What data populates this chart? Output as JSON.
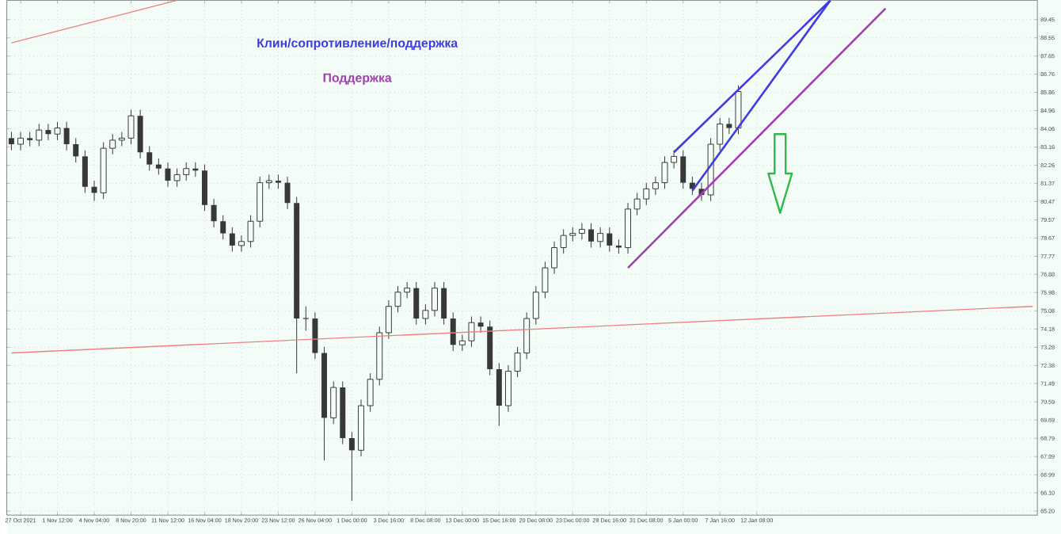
{
  "chart_data": {
    "type": "candlestick",
    "color": "#383838",
    "grid": true,
    "categories": [
      null,
      "27 Oct 2021",
      null,
      null,
      null,
      "1 Nov 12:00",
      null,
      null,
      null,
      "4 Nov 04:00",
      null,
      null,
      null,
      "8 Nov 20:00",
      null,
      null,
      null,
      "11 Nov 12:00",
      null,
      null,
      null,
      "16 Nov 04:00",
      null,
      null,
      null,
      "18 Nov 20:00",
      null,
      null,
      null,
      "23 Nov 12:00",
      null,
      null,
      null,
      "26 Nov 04:00",
      null,
      null,
      null,
      "1 Dec 00:00",
      null,
      null,
      null,
      "3 Dec 16:00",
      null,
      null,
      null,
      "8 Dec 08:00",
      null,
      null,
      null,
      "13 Dec 00:00",
      null,
      null,
      null,
      "15 Dec 16:00",
      null,
      null,
      null,
      "20 Dec 08:00",
      null,
      null,
      null,
      "23 Dec 00:00",
      null,
      null,
      null,
      "28 Dec 16:00",
      null,
      null,
      null,
      "31 Dec 08:00",
      null,
      null,
      null,
      "5 Jan 00:00",
      null,
      null,
      null,
      "7 Jan 16:00",
      null,
      null,
      null,
      "12 Jan 08:00",
      null,
      null,
      null,
      null,
      null,
      null,
      null,
      null,
      null,
      null,
      null,
      null,
      null,
      null,
      null,
      null,
      null,
      null,
      null,
      null,
      null,
      null,
      null,
      null,
      null,
      null,
      null,
      null,
      null,
      null
    ],
    "ohlc": [
      [
        83.6,
        83.9,
        83.0,
        83.3
      ],
      [
        83.3,
        83.9,
        83.0,
        83.6
      ],
      [
        83.6,
        83.9,
        83.2,
        83.5
      ],
      [
        83.5,
        84.3,
        83.2,
        84.0
      ],
      [
        84.0,
        84.3,
        83.5,
        83.8
      ],
      [
        83.8,
        84.4,
        83.5,
        84.1
      ],
      [
        84.1,
        84.4,
        83.0,
        83.3
      ],
      [
        83.3,
        83.6,
        82.4,
        82.7
      ],
      [
        82.7,
        83.0,
        80.9,
        81.2
      ],
      [
        81.2,
        81.5,
        80.5,
        80.9
      ],
      [
        80.9,
        83.4,
        80.6,
        83.1
      ],
      [
        83.1,
        83.8,
        82.8,
        83.5
      ],
      [
        83.5,
        83.9,
        83.2,
        83.6
      ],
      [
        83.6,
        85.0,
        83.3,
        84.7
      ],
      [
        84.7,
        85.0,
        82.6,
        82.9
      ],
      [
        82.9,
        83.2,
        82.0,
        82.3
      ],
      [
        82.3,
        82.6,
        81.8,
        82.1
      ],
      [
        82.1,
        82.4,
        81.2,
        81.5
      ],
      [
        81.5,
        82.1,
        81.2,
        81.8
      ],
      [
        81.8,
        82.4,
        81.5,
        82.1
      ],
      [
        82.1,
        82.4,
        81.7,
        82.0
      ],
      [
        82.0,
        82.3,
        80.0,
        80.3
      ],
      [
        80.3,
        80.6,
        79.2,
        79.5
      ],
      [
        79.5,
        79.8,
        78.6,
        78.9
      ],
      [
        78.9,
        79.2,
        78.0,
        78.3
      ],
      [
        78.3,
        78.8,
        78.0,
        78.5
      ],
      [
        78.5,
        79.8,
        78.2,
        79.5
      ],
      [
        79.5,
        81.7,
        79.2,
        81.4
      ],
      [
        81.4,
        81.8,
        81.1,
        81.5
      ],
      [
        81.5,
        81.8,
        81.1,
        81.4
      ],
      [
        81.4,
        81.7,
        80.1,
        80.4
      ],
      [
        80.4,
        80.7,
        72.0,
        74.7
      ],
      [
        74.7,
        75.3,
        74.1,
        74.7
      ],
      [
        74.7,
        75.0,
        72.7,
        73.0
      ],
      [
        73.0,
        73.3,
        67.7,
        69.8
      ],
      [
        69.8,
        71.6,
        69.5,
        71.3
      ],
      [
        71.3,
        71.6,
        68.5,
        68.8
      ],
      [
        68.8,
        69.1,
        65.7,
        68.2
      ],
      [
        68.2,
        70.7,
        67.9,
        70.4
      ],
      [
        70.4,
        72.0,
        70.1,
        71.7
      ],
      [
        71.7,
        74.3,
        71.4,
        74.0
      ],
      [
        74.0,
        75.6,
        73.7,
        75.3
      ],
      [
        75.3,
        76.3,
        75.0,
        76.0
      ],
      [
        76.0,
        76.5,
        75.7,
        76.2
      ],
      [
        76.2,
        76.5,
        74.4,
        74.7
      ],
      [
        74.7,
        75.4,
        74.4,
        75.1
      ],
      [
        75.1,
        76.5,
        74.8,
        76.2
      ],
      [
        76.2,
        76.5,
        74.4,
        74.7
      ],
      [
        74.7,
        75.0,
        73.1,
        73.4
      ],
      [
        73.4,
        73.9,
        73.1,
        73.6
      ],
      [
        73.6,
        74.8,
        73.3,
        74.5
      ],
      [
        74.5,
        74.8,
        74.0,
        74.3
      ],
      [
        74.3,
        74.6,
        71.9,
        72.2
      ],
      [
        72.2,
        72.5,
        69.4,
        70.4
      ],
      [
        70.4,
        72.4,
        70.1,
        72.1
      ],
      [
        72.1,
        73.3,
        71.8,
        73.0
      ],
      [
        73.0,
        75.0,
        72.7,
        74.7
      ],
      [
        74.7,
        76.3,
        74.4,
        76.0
      ],
      [
        76.0,
        77.5,
        75.7,
        77.2
      ],
      [
        77.2,
        78.5,
        76.9,
        78.2
      ],
      [
        78.2,
        79.1,
        77.9,
        78.8
      ],
      [
        78.8,
        79.2,
        78.5,
        78.9
      ],
      [
        78.9,
        79.4,
        78.6,
        79.1
      ],
      [
        79.1,
        79.4,
        78.2,
        78.5
      ],
      [
        78.5,
        79.2,
        78.2,
        78.9
      ],
      [
        78.9,
        79.2,
        78.0,
        78.3
      ],
      [
        78.3,
        78.6,
        77.9,
        78.2
      ],
      [
        78.2,
        80.4,
        77.9,
        80.1
      ],
      [
        80.1,
        80.9,
        79.8,
        80.6
      ],
      [
        80.6,
        81.4,
        80.3,
        81.1
      ],
      [
        81.1,
        81.7,
        80.8,
        81.4
      ],
      [
        81.4,
        82.7,
        81.1,
        82.4
      ],
      [
        82.4,
        83.0,
        82.1,
        82.7
      ],
      [
        82.7,
        83.0,
        81.1,
        81.4
      ],
      [
        81.4,
        81.7,
        80.8,
        81.1
      ],
      [
        81.1,
        81.4,
        80.5,
        80.8
      ],
      [
        80.8,
        83.6,
        80.5,
        83.3
      ],
      [
        83.3,
        84.6,
        83.0,
        84.3
      ],
      [
        84.3,
        84.6,
        83.8,
        84.1
      ],
      [
        84.1,
        86.2,
        83.8,
        85.9
      ],
      null,
      null,
      null,
      null,
      null,
      null,
      null,
      null,
      null,
      null,
      null,
      null,
      null,
      null,
      null,
      null,
      null,
      null,
      null,
      null,
      null,
      null,
      null,
      null,
      null,
      null,
      null,
      null,
      null,
      null,
      null,
      null
    ],
    "ylim": [
      65.0,
      90.4
    ],
    "yticks": [
      {
        "value": 65.2,
        "label": "65.20"
      },
      {
        "value": 66.1,
        "label": "66.10"
      },
      {
        "value": 66.99,
        "label": "66.99"
      },
      {
        "value": 67.89,
        "label": "67.89"
      },
      {
        "value": 68.79,
        "label": "68.79"
      },
      {
        "value": 69.69,
        "label": "69.69"
      },
      {
        "value": 70.59,
        "label": "70.59"
      },
      {
        "value": 71.49,
        "label": "71.49"
      },
      {
        "value": 72.38,
        "label": "72.38"
      },
      {
        "value": 73.28,
        "label": "73.28"
      },
      {
        "value": 74.18,
        "label": "74.18"
      },
      {
        "value": 75.08,
        "label": "75.08"
      },
      {
        "value": 75.98,
        "label": "75.98"
      },
      {
        "value": 76.88,
        "label": "76.88"
      },
      {
        "value": 77.77,
        "label": "77.77"
      },
      {
        "value": 78.67,
        "label": "78.67"
      },
      {
        "value": 79.57,
        "label": "79.57"
      },
      {
        "value": 80.47,
        "label": "80.47"
      },
      {
        "value": 81.37,
        "label": "81.37"
      },
      {
        "value": 82.26,
        "label": "82.26"
      },
      {
        "value": 83.16,
        "label": "83.16"
      },
      {
        "value": 84.06,
        "label": "84.06"
      },
      {
        "value": 84.96,
        "label": "84.96"
      },
      {
        "value": 85.86,
        "label": "85.86"
      },
      {
        "value": 86.76,
        "label": "86.76"
      },
      {
        "value": 87.65,
        "label": "87.65"
      },
      {
        "value": 88.55,
        "label": "88.55"
      },
      {
        "value": 89.45,
        "label": "89.45"
      }
    ],
    "series": [
      {
        "type": "line",
        "color": "#f08080",
        "values": [
          73.0,
          null,
          null,
          null,
          null,
          null,
          null,
          null,
          null,
          null,
          null,
          null,
          null,
          null,
          null,
          null,
          null,
          null,
          null,
          null,
          null,
          null,
          null,
          null,
          null,
          null,
          null,
          null,
          null,
          null,
          null,
          null,
          null,
          null,
          null,
          null,
          null,
          null,
          null,
          null,
          null,
          null,
          null,
          null,
          null,
          null,
          null,
          null,
          null,
          null,
          null,
          null,
          null,
          null,
          null,
          null,
          null,
          null,
          null,
          null,
          null,
          null,
          null,
          null,
          null,
          null,
          null,
          null,
          null,
          null,
          null,
          null,
          null,
          null,
          null,
          null,
          null,
          null,
          null,
          null,
          null,
          null,
          null,
          null,
          null,
          null,
          null,
          null,
          null,
          null,
          null,
          null,
          null,
          null,
          null,
          null,
          null,
          null,
          null,
          null,
          null,
          null,
          null,
          null,
          null,
          null,
          null,
          null,
          null,
          null,
          null,
          75.3
        ]
      },
      {
        "type": "line",
        "color": "#f08080",
        "values": [
          88.3,
          null,
          null,
          null,
          null,
          null,
          null,
          null,
          null,
          null,
          null,
          null,
          null,
          null,
          null,
          null,
          null,
          null,
          90.4,
          null,
          null,
          null,
          null,
          null,
          null,
          null,
          null,
          null,
          null,
          null,
          null,
          null,
          null,
          null,
          null,
          null,
          null,
          null,
          null,
          null,
          null,
          null,
          null,
          null,
          null,
          null,
          null,
          null,
          null,
          null,
          null,
          null,
          null,
          null,
          null,
          null,
          null,
          null,
          null,
          null,
          null,
          null,
          null,
          null,
          null,
          null,
          null,
          null,
          null,
          null,
          null,
          null,
          null,
          null,
          null,
          null,
          null,
          null,
          null,
          null,
          null,
          null,
          null,
          null,
          null,
          null,
          null,
          null,
          null,
          null,
          null,
          null,
          null,
          null,
          null,
          null,
          null,
          null,
          null,
          null,
          null,
          null,
          null,
          null,
          null,
          null,
          null,
          null,
          null,
          null,
          null,
          null
        ]
      },
      {
        "type": "line",
        "color": "#3c3ce0",
        "name": "Клин/сопротивление/поддержка",
        "values": [
          null,
          null,
          null,
          null,
          null,
          null,
          null,
          null,
          null,
          null,
          null,
          null,
          null,
          null,
          null,
          null,
          null,
          null,
          null,
          null,
          null,
          null,
          null,
          null,
          null,
          null,
          null,
          null,
          null,
          null,
          null,
          null,
          null,
          null,
          null,
          null,
          null,
          null,
          null,
          null,
          null,
          null,
          null,
          null,
          null,
          null,
          null,
          null,
          null,
          null,
          null,
          null,
          null,
          null,
          null,
          null,
          null,
          null,
          null,
          null,
          null,
          null,
          null,
          null,
          null,
          null,
          null,
          null,
          null,
          null,
          null,
          null,
          82.9,
          null,
          null,
          null,
          null,
          null,
          null,
          null,
          null,
          null,
          null,
          null,
          null,
          null,
          null,
          null,
          null,
          90.4,
          null,
          null,
          null,
          null,
          null,
          null,
          null,
          null,
          null,
          null,
          null,
          null,
          null,
          null,
          null,
          null,
          null,
          null,
          null,
          null,
          null,
          null
        ]
      },
      {
        "type": "line",
        "color": "#3c3ce0",
        "values": [
          null,
          null,
          null,
          null,
          null,
          null,
          null,
          null,
          null,
          null,
          null,
          null,
          null,
          null,
          null,
          null,
          null,
          null,
          null,
          null,
          null,
          null,
          null,
          null,
          null,
          null,
          null,
          null,
          null,
          null,
          null,
          null,
          null,
          null,
          null,
          null,
          null,
          null,
          null,
          null,
          null,
          null,
          null,
          null,
          null,
          null,
          null,
          null,
          null,
          null,
          null,
          null,
          null,
          null,
          null,
          null,
          null,
          null,
          null,
          null,
          null,
          null,
          null,
          null,
          null,
          null,
          null,
          null,
          null,
          null,
          null,
          null,
          null,
          null,
          81.0,
          null,
          null,
          null,
          null,
          null,
          null,
          null,
          null,
          null,
          null,
          null,
          null,
          null,
          null,
          90.4,
          null,
          null,
          null,
          null,
          null,
          null,
          null,
          null,
          null,
          null,
          null,
          null,
          null,
          null,
          null,
          null,
          null,
          null,
          null,
          null,
          null,
          null
        ]
      },
      {
        "type": "line",
        "color": "#a040b0",
        "name": "Поддержка",
        "values": [
          null,
          null,
          null,
          null,
          null,
          null,
          null,
          null,
          null,
          null,
          null,
          null,
          null,
          null,
          null,
          null,
          null,
          null,
          null,
          null,
          null,
          null,
          null,
          null,
          null,
          null,
          null,
          null,
          null,
          null,
          null,
          null,
          null,
          null,
          null,
          null,
          null,
          null,
          null,
          null,
          null,
          null,
          null,
          null,
          null,
          null,
          null,
          null,
          null,
          null,
          null,
          null,
          null,
          null,
          null,
          null,
          null,
          null,
          null,
          null,
          null,
          null,
          null,
          null,
          null,
          null,
          null,
          77.2,
          null,
          null,
          null,
          null,
          null,
          null,
          null,
          null,
          null,
          null,
          null,
          null,
          null,
          null,
          null,
          null,
          null,
          null,
          null,
          null,
          null,
          null,
          null,
          null,
          null,
          null,
          null,
          90.0,
          null,
          null,
          null,
          null,
          null,
          null,
          null,
          null,
          null,
          null,
          null,
          null,
          null,
          null,
          null,
          null
        ]
      }
    ]
  }
}
